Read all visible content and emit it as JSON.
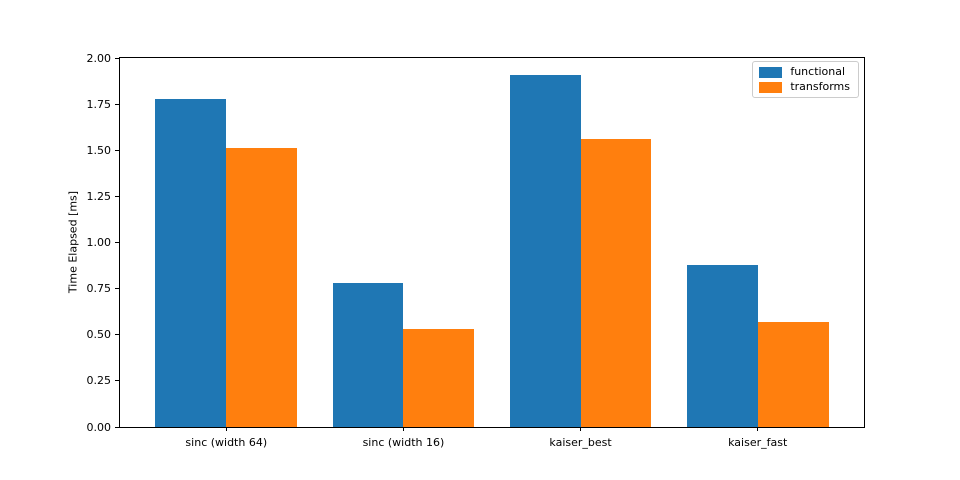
{
  "figure": {
    "background": "#ffffff"
  },
  "chart_data": {
    "type": "bar",
    "title": "",
    "xlabel": "",
    "ylabel": "Time Elapsed [ms]",
    "categories": [
      "sinc (width 64)",
      "sinc (width 16)",
      "kaiser_best",
      "kaiser_fast"
    ],
    "series": [
      {
        "name": "functional",
        "color": "#1f77b4",
        "values": [
          1.78,
          0.78,
          1.91,
          0.88
        ]
      },
      {
        "name": "transforms",
        "color": "#ff7f0e",
        "values": [
          1.51,
          0.53,
          1.56,
          0.57
        ]
      }
    ],
    "ylim": [
      0,
      2.0
    ],
    "xlim": [
      -0.6,
      3.6
    ],
    "bar_width": 0.4,
    "yticks": [
      "0.00",
      "0.25",
      "0.50",
      "0.75",
      "1.00",
      "1.25",
      "1.50",
      "1.75",
      "2.00"
    ],
    "grid": false,
    "legend_position": "top-right"
  }
}
